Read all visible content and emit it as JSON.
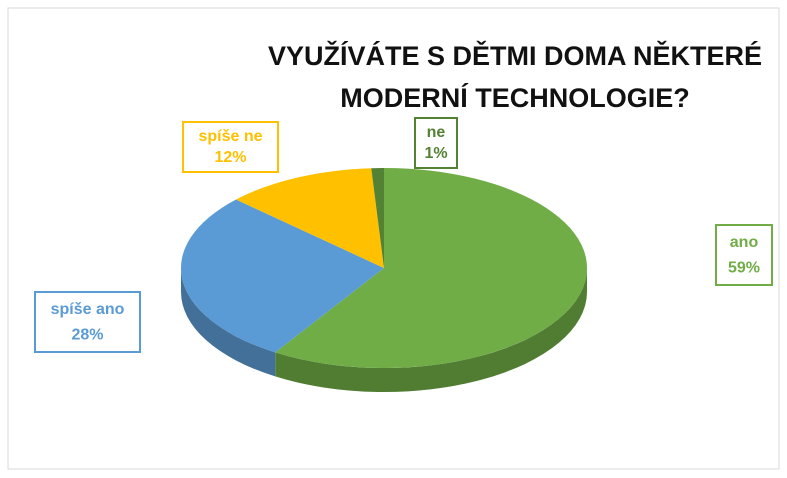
{
  "chart_data": {
    "type": "pie3d",
    "title": [
      "VYUŽÍVÁTE S DĚTMI DOMA NĚKTERÉ",
      "MODERNÍ TECHNOLOGIE?"
    ],
    "categories": [
      "ano",
      "spíše ano",
      "spíše ne",
      "ne"
    ],
    "values": [
      59,
      28,
      12,
      1
    ],
    "value_labels": [
      "59%",
      "28%",
      "12%",
      "1%"
    ],
    "colors": [
      "#70ad47",
      "#5b9bd5",
      "#ffc000",
      "#548235"
    ]
  }
}
